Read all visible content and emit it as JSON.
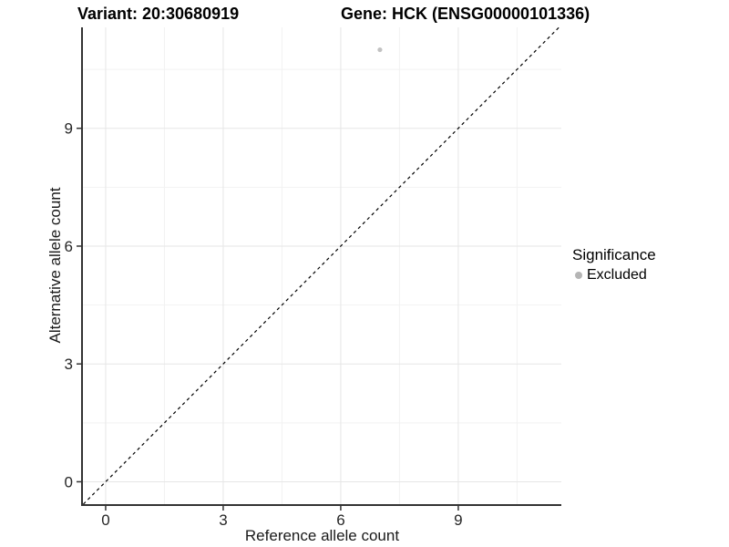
{
  "chart_data": {
    "type": "scatter",
    "title_left": "Variant: 20:30680919",
    "title_right": "Gene: HCK (ENSG00000101336)",
    "xlabel": "Reference allele count",
    "ylabel": "Alternative allele count",
    "xlim": [
      -0.58,
      11.63
    ],
    "ylim": [
      -0.57,
      11.57
    ],
    "x_major_ticks": [
      0,
      3,
      6,
      9
    ],
    "y_major_ticks": [
      0,
      3,
      6,
      9
    ],
    "x_minor_ticks": [
      1.5,
      4.5,
      7.5,
      10.5
    ],
    "y_minor_ticks": [
      1.5,
      4.5,
      7.5,
      10.5
    ],
    "grid": "major+minor",
    "points": [
      {
        "x": 7,
        "y": 11,
        "significance": "Excluded"
      }
    ],
    "reference_line": {
      "kind": "identity y=x",
      "style": "dashed",
      "color": "#000000"
    },
    "legend": {
      "title": "Significance",
      "position": "right",
      "items": [
        {
          "label": "Excluded",
          "color": "#bebebe",
          "marker": "circle"
        }
      ]
    },
    "colors": {
      "point": "#c2c2c2",
      "legend_key": "#b5b5b5",
      "grid_major": "#e6e6e6",
      "grid_minor": "#f2f2f2",
      "axis_line": "#333333",
      "tick_label": "#262626",
      "background": "#ffffff"
    }
  }
}
